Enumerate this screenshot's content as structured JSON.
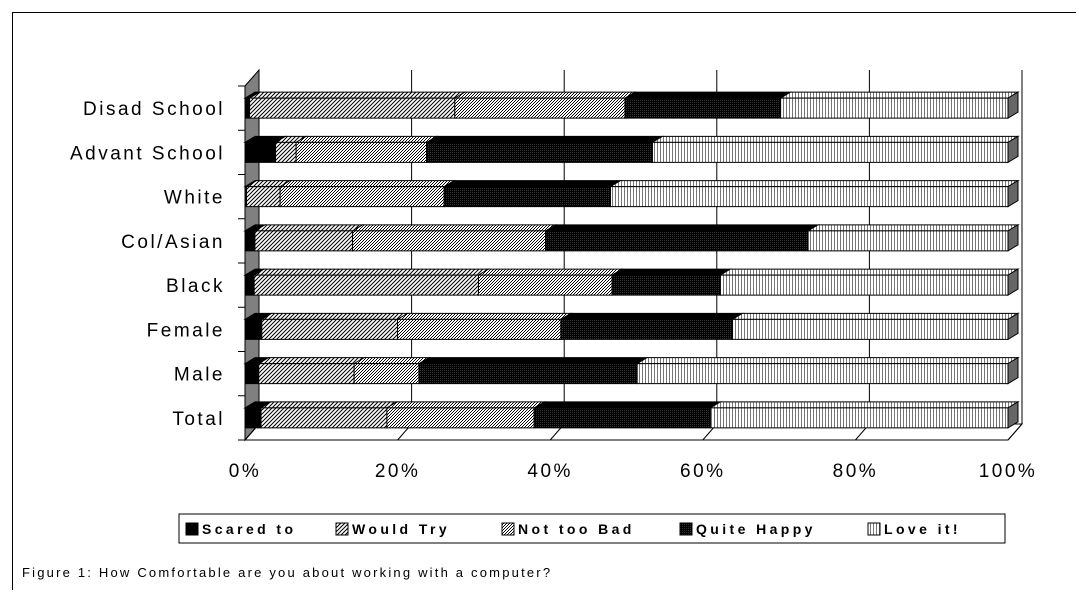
{
  "caption": "Figure 1: How Comfortable are you about working with a computer?",
  "chart_data": {
    "type": "bar",
    "orientation": "horizontal",
    "stacked": "percent",
    "categories": [
      "Disad School",
      "Advant School",
      "White",
      "Col/Asian",
      "Black",
      "Female",
      "Male",
      "Total"
    ],
    "series": [
      {
        "name": "Scared to",
        "values": [
          0.6,
          4.0,
          0.2,
          1.3,
          1.2,
          2.2,
          1.8,
          2.1
        ],
        "pattern": "solid",
        "color": "#000000"
      },
      {
        "name": "Would Try",
        "values": [
          26.9,
          2.7,
          4.4,
          12.8,
          29.4,
          17.8,
          12.5,
          16.5
        ],
        "pattern": "diag",
        "color": "#666666"
      },
      {
        "name": "Not too Bad",
        "values": [
          22.3,
          17.1,
          21.5,
          25.3,
          17.5,
          21.4,
          8.5,
          19.3
        ],
        "pattern": "dots",
        "color": "#777777"
      },
      {
        "name": "Quite Happy",
        "values": [
          20.4,
          29.6,
          21.8,
          34.4,
          14.2,
          22.5,
          28.6,
          23.1
        ],
        "pattern": "dark",
        "color": "#111111"
      },
      {
        "name": "Love it!",
        "values": [
          29.8,
          46.6,
          52.1,
          26.2,
          37.7,
          36.1,
          48.6,
          39.0
        ],
        "pattern": "vlines",
        "color": "#ffffff"
      }
    ],
    "x_ticks": [
      "0%",
      "20%",
      "40%",
      "60%",
      "80%",
      "100%"
    ],
    "xlim": [
      0,
      100
    ],
    "grid": true,
    "legend_position": "bottom"
  }
}
